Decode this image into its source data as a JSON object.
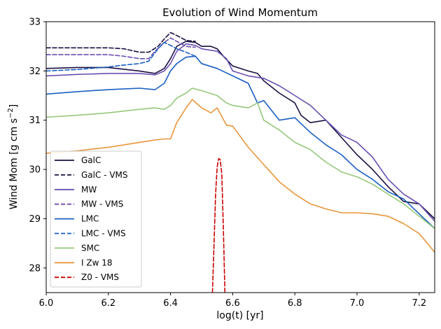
{
  "chart_data": {
    "type": "line",
    "title": "Evolution of Wind Momentum",
    "xlabel": "log(t) [yr]",
    "ylabel_main": "Wind Mom [g cm s",
    "ylabel_exp": "−2",
    "ylabel_close": "]",
    "xlim": [
      6.0,
      7.25
    ],
    "ylim": [
      27.5,
      33.0
    ],
    "xticks": [
      6.0,
      6.2,
      6.4,
      6.6,
      6.8,
      7.0,
      7.2
    ],
    "xtick_labels": [
      "6.0",
      "6.2",
      "6.4",
      "6.6",
      "6.8",
      "7.0",
      "7.2"
    ],
    "yticks": [
      28,
      29,
      30,
      31,
      32,
      33
    ],
    "ytick_labels": [
      "28",
      "29",
      "30",
      "31",
      "32",
      "33"
    ],
    "legend_position": "lower-left",
    "series": [
      {
        "name": "GalC",
        "color": "#1a1040",
        "dash": "solid",
        "x": [
          6.0,
          6.1,
          6.2,
          6.3,
          6.35,
          6.38,
          6.4,
          6.42,
          6.45,
          6.48,
          6.5,
          6.53,
          6.55,
          6.57,
          6.6,
          6.65,
          6.68,
          6.7,
          6.75,
          6.8,
          6.82,
          6.85,
          6.9,
          6.95,
          7.0,
          7.05,
          7.1,
          7.15,
          7.2,
          7.25
        ],
        "y": [
          32.05,
          32.07,
          32.07,
          32.0,
          31.95,
          32.05,
          32.25,
          32.5,
          32.6,
          32.58,
          32.5,
          32.5,
          32.45,
          32.3,
          32.1,
          32.0,
          31.95,
          31.8,
          31.55,
          31.35,
          31.1,
          30.95,
          31.0,
          30.65,
          30.3,
          30.0,
          29.65,
          29.35,
          29.3,
          29.0
        ]
      },
      {
        "name": "GalC - VMS",
        "color": "#1a1040",
        "dash": "dashed",
        "x": [
          6.0,
          6.1,
          6.2,
          6.25,
          6.3,
          6.33,
          6.36,
          6.38,
          6.4,
          6.42,
          6.45,
          6.48
        ],
        "y": [
          32.47,
          32.47,
          32.47,
          32.45,
          32.38,
          32.38,
          32.5,
          32.65,
          32.78,
          32.72,
          32.62,
          32.6
        ]
      },
      {
        "name": "MW",
        "color": "#6a4fb0",
        "dash": "solid",
        "x": [
          6.0,
          6.1,
          6.2,
          6.3,
          6.35,
          6.38,
          6.4,
          6.42,
          6.45,
          6.48,
          6.5,
          6.55,
          6.58,
          6.6,
          6.65,
          6.7,
          6.75,
          6.8,
          6.85,
          6.9,
          6.95,
          7.0,
          7.05,
          7.1,
          7.15,
          7.2,
          7.25
        ],
        "y": [
          31.9,
          31.93,
          31.95,
          31.95,
          31.92,
          32.0,
          32.15,
          32.4,
          32.55,
          32.52,
          32.45,
          32.4,
          32.25,
          32.0,
          31.9,
          31.85,
          31.7,
          31.5,
          31.3,
          31.0,
          30.7,
          30.55,
          30.25,
          29.8,
          29.5,
          29.3,
          28.95
        ]
      },
      {
        "name": "MW - VMS",
        "color": "#6a4fb0",
        "dash": "dashed",
        "x": [
          6.0,
          6.1,
          6.2,
          6.25,
          6.3,
          6.33,
          6.35,
          6.38,
          6.4,
          6.42,
          6.45,
          6.48
        ],
        "y": [
          32.33,
          32.33,
          32.33,
          32.3,
          32.25,
          32.25,
          32.4,
          32.58,
          32.67,
          32.6,
          32.5,
          32.48
        ]
      },
      {
        "name": "LMC",
        "color": "#1a5fc4",
        "dash": "solid",
        "x": [
          6.0,
          6.1,
          6.2,
          6.3,
          6.35,
          6.38,
          6.4,
          6.42,
          6.45,
          6.48,
          6.5,
          6.55,
          6.6,
          6.65,
          6.68,
          6.7,
          6.75,
          6.8,
          6.85,
          6.9,
          6.95,
          7.0,
          7.05,
          7.1,
          7.15,
          7.2,
          7.25
        ],
        "y": [
          31.53,
          31.58,
          31.62,
          31.65,
          31.62,
          31.75,
          32.0,
          32.15,
          32.28,
          32.3,
          32.15,
          32.05,
          31.9,
          31.75,
          31.35,
          31.4,
          31.0,
          31.05,
          30.75,
          30.5,
          30.3,
          30.0,
          29.8,
          29.55,
          29.4,
          29.1,
          28.8
        ]
      },
      {
        "name": "LMC - VMS",
        "color": "#1a5fc4",
        "dash": "dashed",
        "x": [
          6.0,
          6.1,
          6.2,
          6.25,
          6.3,
          6.33,
          6.36,
          6.38,
          6.4,
          6.42,
          6.45,
          6.48
        ],
        "y": [
          32.0,
          32.03,
          32.08,
          32.12,
          32.15,
          32.2,
          32.45,
          32.58,
          32.52,
          32.45,
          32.38,
          32.3
        ]
      },
      {
        "name": "SMC",
        "color": "#96c87a",
        "dash": "solid",
        "x": [
          6.0,
          6.1,
          6.2,
          6.3,
          6.35,
          6.38,
          6.4,
          6.42,
          6.45,
          6.47,
          6.5,
          6.55,
          6.58,
          6.6,
          6.65,
          6.68,
          6.7,
          6.75,
          6.8,
          6.85,
          6.9,
          6.95,
          7.0,
          7.05,
          7.1,
          7.15,
          7.2,
          7.25
        ],
        "y": [
          31.06,
          31.1,
          31.15,
          31.22,
          31.25,
          31.22,
          31.3,
          31.45,
          31.55,
          31.65,
          31.6,
          31.5,
          31.35,
          31.3,
          31.25,
          31.35,
          31.0,
          30.8,
          30.55,
          30.4,
          30.15,
          29.95,
          29.85,
          29.7,
          29.5,
          29.3,
          29.05,
          28.8
        ]
      },
      {
        "name": "I Zw 18",
        "color": "#e8963c",
        "dash": "solid",
        "x": [
          6.0,
          6.1,
          6.2,
          6.3,
          6.35,
          6.38,
          6.4,
          6.42,
          6.45,
          6.47,
          6.5,
          6.53,
          6.55,
          6.58,
          6.6,
          6.65,
          6.7,
          6.75,
          6.8,
          6.85,
          6.9,
          6.95,
          7.0,
          7.05,
          7.1,
          7.15,
          7.2,
          7.25
        ],
        "y": [
          30.33,
          30.38,
          30.45,
          30.55,
          30.6,
          30.62,
          30.62,
          30.95,
          31.25,
          31.42,
          31.25,
          31.15,
          31.25,
          30.9,
          30.88,
          30.45,
          30.1,
          29.75,
          29.5,
          29.3,
          29.2,
          29.12,
          29.12,
          29.1,
          29.05,
          28.9,
          28.7,
          28.32
        ]
      },
      {
        "name": "Z0 - VMS",
        "color": "#cc0000",
        "dash": "dashed",
        "x": [
          6.535,
          6.54,
          6.545,
          6.55,
          6.555,
          6.56,
          6.565,
          6.57,
          6.575
        ],
        "y": [
          27.5,
          28.5,
          29.5,
          30.05,
          30.22,
          30.2,
          29.9,
          28.8,
          27.5
        ]
      }
    ]
  }
}
